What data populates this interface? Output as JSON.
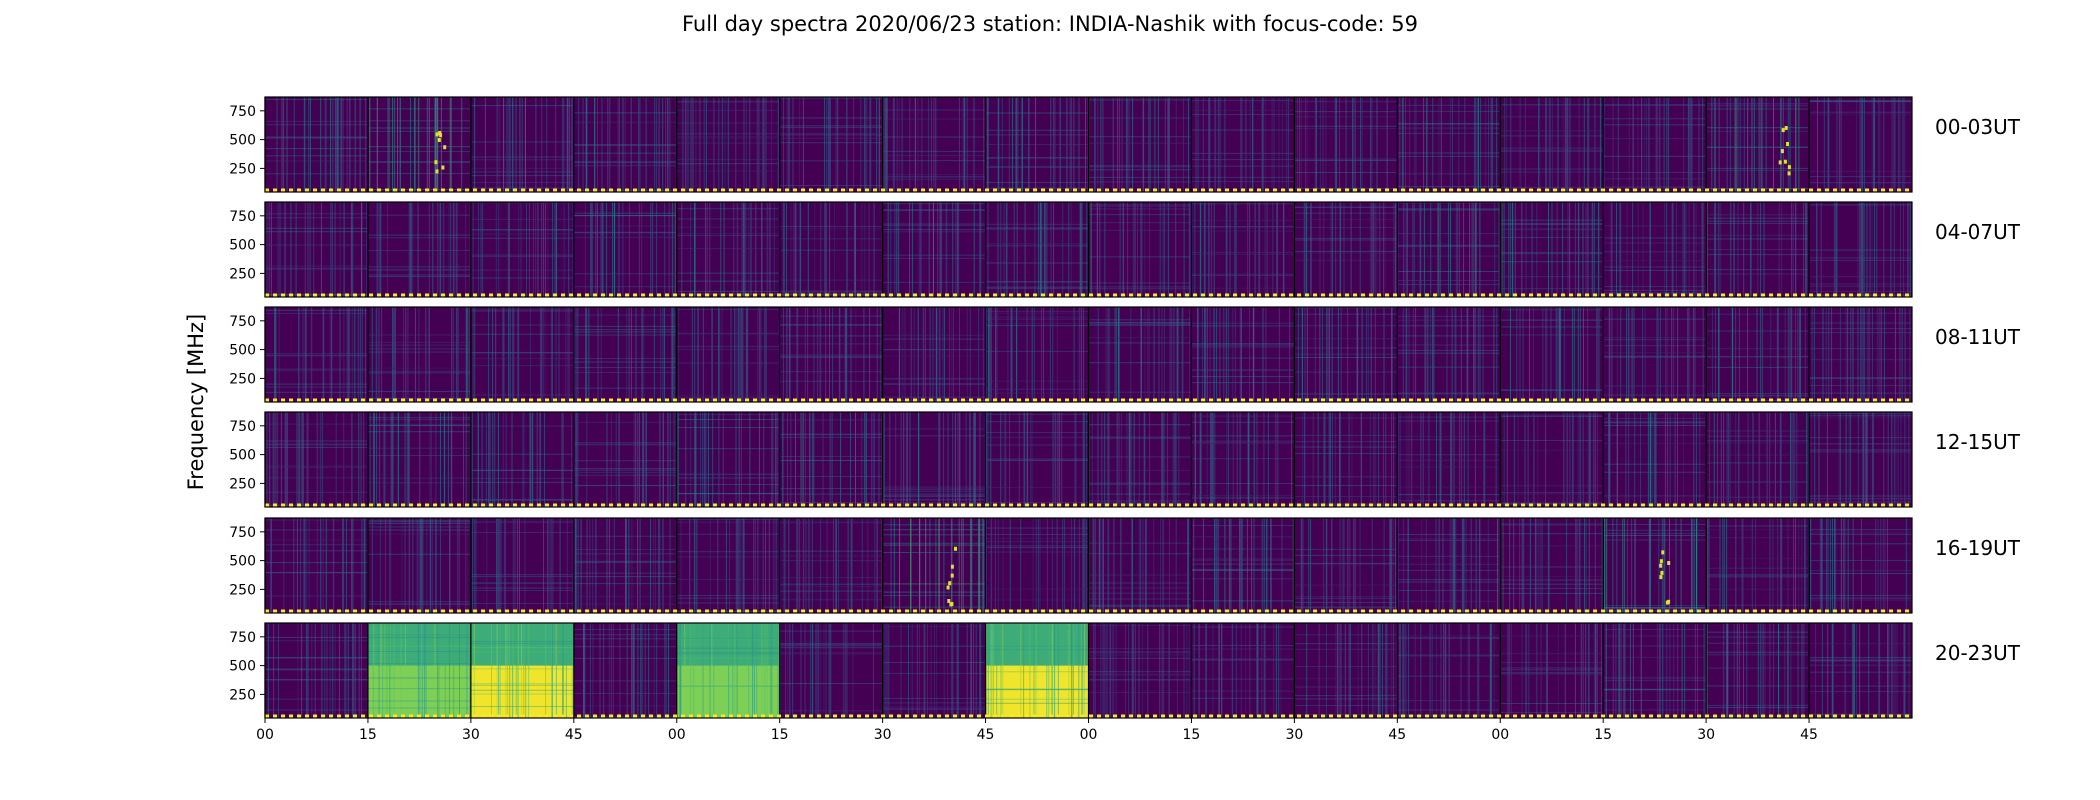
{
  "chart_data": {
    "type": "heatmap",
    "title": "Full day spectra 2020/06/23 station: INDIA-Nashik with focus-code: 59",
    "xlabel": "",
    "ylabel": "Frequency [MHz]",
    "ylim": [
      45,
      870
    ],
    "y_ticks": [
      "250",
      "500",
      "750"
    ],
    "y_tick_values": [
      250,
      500,
      750
    ],
    "x_ticks": [
      "00",
      "15",
      "30",
      "45",
      "00",
      "15",
      "30",
      "45",
      "00",
      "15",
      "30",
      "45",
      "00",
      "15",
      "30",
      "45"
    ],
    "files_per_row": 16,
    "minutes_per_file": 15,
    "colormap": "viridis",
    "colors": {
      "background": "#440154",
      "mid": "#21918c",
      "high": "#5ec962",
      "max": "#fde725"
    },
    "rows": [
      {
        "label": "00-03UT",
        "intensity": [
          0.35,
          0.55,
          0.3,
          0.3,
          0.22,
          0.2,
          0.2,
          0.3,
          0.2,
          0.2,
          0.2,
          0.25,
          0.2,
          0.2,
          0.45,
          0.2
        ]
      },
      {
        "label": "04-07UT",
        "intensity": [
          0.25,
          0.2,
          0.2,
          0.3,
          0.25,
          0.2,
          0.3,
          0.25,
          0.2,
          0.2,
          0.2,
          0.3,
          0.3,
          0.2,
          0.2,
          0.2
        ]
      },
      {
        "label": "08-11UT",
        "intensity": [
          0.25,
          0.2,
          0.2,
          0.2,
          0.2,
          0.2,
          0.2,
          0.2,
          0.2,
          0.25,
          0.3,
          0.3,
          0.3,
          0.2,
          0.3,
          0.25
        ]
      },
      {
        "label": "12-15UT",
        "intensity": [
          0.25,
          0.3,
          0.3,
          0.25,
          0.3,
          0.35,
          0.35,
          0.25,
          0.3,
          0.25,
          0.2,
          0.2,
          0.2,
          0.2,
          0.25,
          0.2
        ]
      },
      {
        "label": "16-19UT",
        "intensity": [
          0.25,
          0.2,
          0.2,
          0.25,
          0.2,
          0.2,
          0.7,
          0.2,
          0.3,
          0.35,
          0.2,
          0.2,
          0.2,
          0.5,
          0.2,
          0.2
        ]
      },
      {
        "label": "20-23UT",
        "intensity": [
          0.2,
          0.85,
          0.95,
          0.2,
          0.85,
          0.2,
          0.2,
          0.9,
          0.2,
          0.2,
          0.2,
          0.2,
          0.2,
          0.3,
          0.3,
          0.25
        ]
      }
    ]
  }
}
